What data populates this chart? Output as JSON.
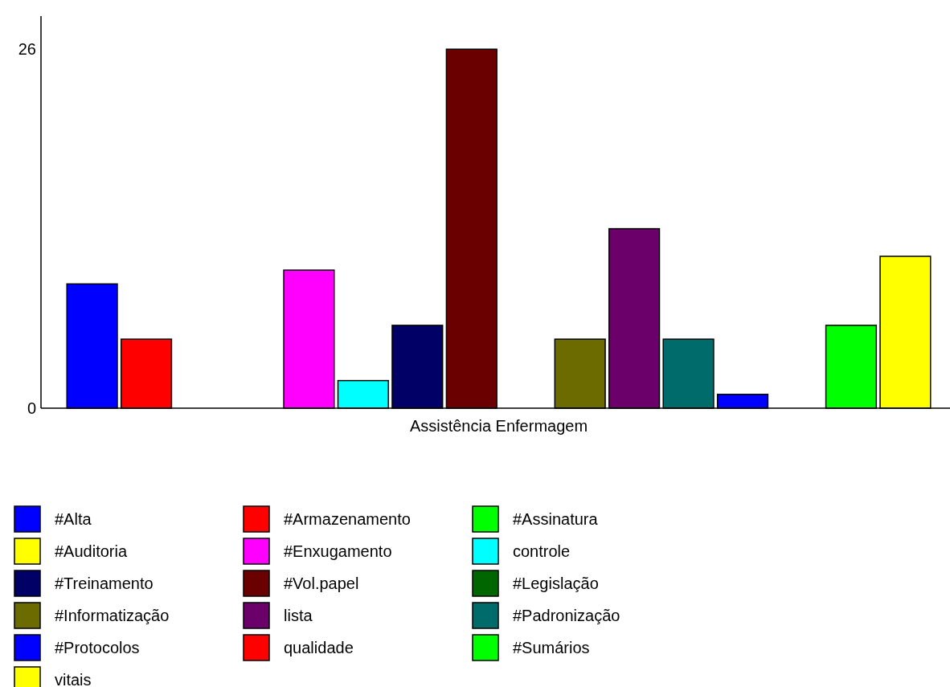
{
  "chart_data": {
    "type": "bar",
    "categories": [
      "Assistência Enfermagem"
    ],
    "ylim": [
      0,
      28.4
    ],
    "yticks": [
      0,
      26
    ],
    "grid": false,
    "legend": "bottom",
    "series": [
      {
        "name": "#Alta",
        "color": "#0000ff",
        "values": [
          9
        ]
      },
      {
        "name": "#Armazenamento",
        "color": "#ff0000",
        "values": [
          5
        ]
      },
      {
        "name": "#Assinatura",
        "color": "#00ff00",
        "values": [
          0
        ]
      },
      {
        "name": "#Auditoria",
        "color": "#ffff00",
        "values": [
          0
        ]
      },
      {
        "name": "#Enxugamento",
        "color": "#ff00ff",
        "values": [
          10
        ]
      },
      {
        "name": "controle",
        "color": "#00ffff",
        "values": [
          2
        ]
      },
      {
        "name": "#Treinamento",
        "color": "#000066",
        "values": [
          6
        ]
      },
      {
        "name": "#Vol.papel",
        "color": "#6b0000",
        "values": [
          26
        ]
      },
      {
        "name": "#Legislação",
        "color": "#006600",
        "values": [
          0
        ]
      },
      {
        "name": "#Informatização",
        "color": "#6b6b00",
        "values": [
          5
        ]
      },
      {
        "name": "lista",
        "color": "#6b006b",
        "values": [
          13
        ]
      },
      {
        "name": "#Padronização",
        "color": "#006b6b",
        "values": [
          5
        ]
      },
      {
        "name": "#Protocolos",
        "color": "#0000ff",
        "values": [
          1
        ]
      },
      {
        "name": "qualidade",
        "color": "#ff0000",
        "values": [
          0
        ]
      },
      {
        "name": "#Sumários",
        "color": "#00ff00",
        "values": [
          6
        ]
      },
      {
        "name": "vitais",
        "color": "#ffff00",
        "values": [
          11
        ]
      }
    ]
  }
}
